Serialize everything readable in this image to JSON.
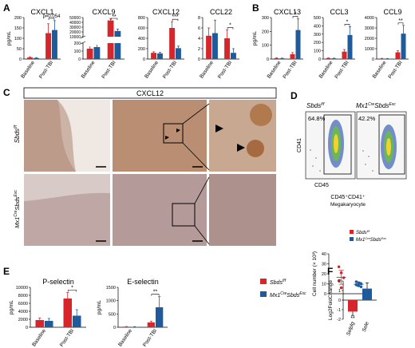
{
  "panels": {
    "A": "A",
    "B": "B",
    "C": "C",
    "D": "D",
    "E": "E",
    "F": "F"
  },
  "colors": {
    "ctrl": "#d7262b",
    "ko": "#1f5a9a",
    "frame": "#000000",
    "flow_bg": "#f6f6f6"
  },
  "common": {
    "ylabel": "pg/mL",
    "x_labels": [
      "Baseline",
      "Post-TBI"
    ]
  },
  "legend": {
    "ctrl": "Sbds",
    "ctrl_sup": "f/f",
    "ko_pre": "Mx1",
    "ko_pre_sup": "Cre",
    "ko_main": "Sbds",
    "ko_sup": "Exc"
  },
  "chart_data": [
    {
      "id": "cxcl1",
      "type": "bar",
      "title": "CXCL1",
      "categories": [
        "Baseline",
        "Post-TBI"
      ],
      "ylim": [
        0,
        200
      ],
      "yticks": [
        0,
        50,
        100,
        150,
        200
      ],
      "series": [
        {
          "name": "Sbds f/f",
          "values": [
            8,
            125
          ],
          "err": [
            3,
            45
          ]
        },
        {
          "name": "Mx1Cre SbdsExc",
          "values": [
            5,
            140
          ],
          "err": [
            2,
            45
          ]
        }
      ],
      "annotation": "p=0.054"
    },
    {
      "id": "cxcl9",
      "type": "bar",
      "title": "CXCL9",
      "categories": [
        "Baseline",
        "Post-TBI"
      ],
      "broken": true,
      "yticks_low": [
        0,
        100,
        200
      ],
      "yticks_high": [
        10000,
        20000,
        30000,
        40000,
        50000
      ],
      "series": [
        {
          "name": "Sbds f/f",
          "values": [
            130,
            44000
          ],
          "err": [
            30,
            4000
          ]
        },
        {
          "name": "Mx1Cre SbdsExc",
          "values": [
            150,
            22000
          ],
          "err": [
            30,
            4000
          ]
        }
      ],
      "annotation": "**"
    },
    {
      "id": "cxcl12",
      "type": "bar",
      "title": "CXCL12",
      "categories": [
        "Baseline",
        "Post-TBI"
      ],
      "ylim": [
        0,
        800
      ],
      "yticks": [
        0,
        200,
        400,
        600,
        800
      ],
      "series": [
        {
          "name": "Sbds f/f",
          "values": [
            120,
            600
          ],
          "err": [
            20,
            120
          ]
        },
        {
          "name": "Mx1Cre SbdsExc",
          "values": [
            110,
            210
          ],
          "err": [
            20,
            40
          ]
        }
      ],
      "annotation": "***"
    },
    {
      "id": "ccl22",
      "type": "bar",
      "title": "CCL22",
      "categories": [
        "Baseline",
        "Post-TBI"
      ],
      "ylim": [
        0,
        8
      ],
      "yticks": [
        0,
        2,
        4,
        6,
        8
      ],
      "series": [
        {
          "name": "Sbds f/f",
          "values": [
            4.5,
            4
          ],
          "err": [
            1.5,
            1.6
          ]
        },
        {
          "name": "Mx1Cre SbdsExc",
          "values": [
            5,
            1.2
          ],
          "err": [
            2.5,
            0.8
          ]
        }
      ],
      "annotation": "*"
    },
    {
      "id": "cxcl13",
      "type": "bar",
      "title": "CXCL13",
      "categories": [
        "Baseline",
        "Post-TBI"
      ],
      "ylim": [
        0,
        300
      ],
      "yticks": [
        0,
        100,
        200,
        300
      ],
      "series": [
        {
          "name": "Sbds f/f",
          "values": [
            6,
            35
          ],
          "err": [
            3,
            12
          ]
        },
        {
          "name": "Mx1Cre SbdsExc",
          "values": [
            5,
            210
          ],
          "err": [
            2,
            80
          ]
        }
      ],
      "annotation": "*"
    },
    {
      "id": "ccl3",
      "type": "bar",
      "title": "CCL3",
      "categories": [
        "Baseline",
        "Post-TBI"
      ],
      "ylim": [
        0,
        500
      ],
      "yticks": [
        0,
        100,
        200,
        300,
        400,
        500
      ],
      "series": [
        {
          "name": "Sbds f/f",
          "values": [
            10,
            90
          ],
          "err": [
            4,
            25
          ]
        },
        {
          "name": "Mx1Cre SbdsExc",
          "values": [
            8,
            290
          ],
          "err": [
            3,
            100
          ]
        }
      ],
      "annotation": "*"
    },
    {
      "id": "ccl9",
      "type": "bar",
      "title": "CCL9",
      "categories": [
        "Baseline",
        "Post-TBI"
      ],
      "ylim": [
        0,
        4000
      ],
      "yticks": [
        0,
        1000,
        2000,
        3000,
        4000
      ],
      "series": [
        {
          "name": "Sbds f/f",
          "values": [
            50,
            650
          ],
          "err": [
            20,
            150
          ]
        },
        {
          "name": "Mx1Cre SbdsExc",
          "values": [
            40,
            2450
          ],
          "err": [
            15,
            800
          ]
        }
      ],
      "annotation": "**"
    },
    {
      "id": "pselectin",
      "type": "bar",
      "title": "P-selectin",
      "ylabel": "pg/mL",
      "categories": [
        "Baseline",
        "Post-TBI"
      ],
      "ylim": [
        0,
        10000
      ],
      "yticks": [
        0,
        2000,
        4000,
        6000,
        8000,
        10000
      ],
      "series": [
        {
          "name": "Sbds f/f",
          "values": [
            1800,
            7200
          ],
          "err": [
            500,
            1500
          ]
        },
        {
          "name": "Mx1Cre SbdsExc",
          "values": [
            1600,
            2900
          ],
          "err": [
            600,
            1500
          ]
        }
      ],
      "annotation": "*"
    },
    {
      "id": "eselectin",
      "type": "bar",
      "title": "E-selectin",
      "ylabel": "pg/mL",
      "categories": [
        "Baseline",
        "Post-TBI"
      ],
      "ylim": [
        0,
        1500
      ],
      "yticks": [
        0,
        500,
        1000,
        1500
      ],
      "series": [
        {
          "name": "Sbds f/f",
          "values": [
            20,
            180
          ],
          "err": [
            8,
            50
          ]
        },
        {
          "name": "Mx1Cre SbdsExc",
          "values": [
            15,
            750
          ],
          "err": [
            8,
            400
          ]
        }
      ],
      "annotation": "**"
    },
    {
      "id": "megak",
      "type": "scatter",
      "title": "CD45⁺CD41⁺",
      "subtitle": "Megakaryocyte",
      "ylabel": "Cell number (× 10³)",
      "ylim": [
        0,
        40
      ],
      "yticks": [
        0,
        10,
        20,
        30,
        40
      ],
      "series": [
        {
          "name": "Sbds f/f",
          "values": [
            27,
            21,
            16,
            13,
            6
          ],
          "mean": 16.5,
          "sd": 7
        },
        {
          "name": "Mx1Cre SbdsExc",
          "values": [
            12,
            11,
            10,
            9,
            8,
            7
          ],
          "mean": 9.5,
          "sd": 2
        }
      ]
    },
    {
      "id": "foldchange",
      "type": "bar",
      "ylabel": "Log2FoldChange",
      "categories": [
        "Selplg",
        "Sele"
      ],
      "ylim": [
        -2,
        2
      ],
      "yticks": [
        -2,
        -1,
        0,
        1,
        2
      ],
      "series": [
        {
          "values": [
            -1.2,
            1.2
          ],
          "err": [
            0.4,
            0.6
          ]
        }
      ],
      "annotation": "**"
    }
  ],
  "panelC": {
    "title": "CXCL12",
    "row1": "Sbds",
    "row1_sup": "f/f",
    "row2_pre": "Mx1",
    "row2_pre_sup": "Cre",
    "row2": "Sbds",
    "row2_sup": "Exc"
  },
  "panelD": {
    "ctrl": "Sbds",
    "ctrl_sup": "f/f",
    "ko_pre": "Mx1",
    "ko_pre_sup": "Cre",
    "ko": "Sbds",
    "ko_sup": "Exc",
    "pct1": "64.8%",
    "pct2": "42.2%",
    "yaxis": "CD41",
    "xaxis": "CD45"
  }
}
